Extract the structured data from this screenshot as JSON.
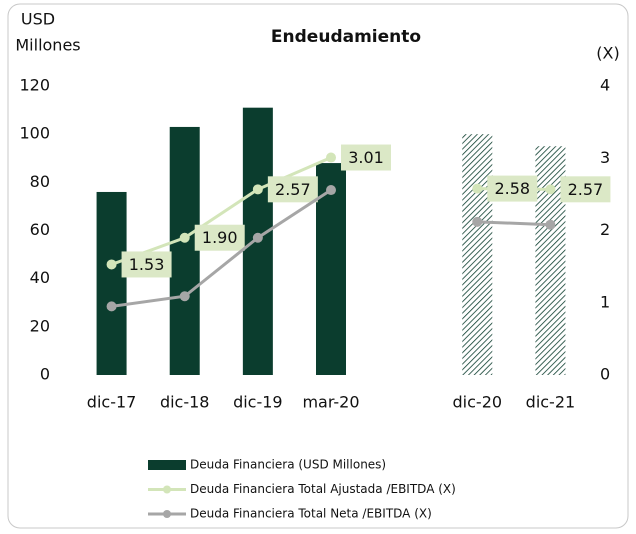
{
  "chart_data": {
    "type": "bar-line",
    "title": "Endeudamiento",
    "ylabel": [
      "USD",
      "Millones"
    ],
    "y2label": "(X)",
    "categories": [
      "dic-17",
      "dic-18",
      "dic-19",
      "mar-20",
      null,
      "dic-20",
      "dic-21"
    ],
    "ylim": [
      0,
      120
    ],
    "yticks": [
      0,
      20,
      40,
      60,
      80,
      100,
      120
    ],
    "y2lim": [
      0,
      4
    ],
    "y2ticks": [
      0,
      1,
      2,
      3,
      4
    ],
    "series": [
      {
        "name": "Deuda Financiera (USD Millones)",
        "type": "bar",
        "color": "#0b3d2e",
        "hatched": [
          false,
          false,
          false,
          false,
          false,
          true,
          true
        ],
        "values": [
          76,
          103,
          111,
          88,
          null,
          100,
          95
        ]
      },
      {
        "name": "Deuda Financiera Total Ajustada /EBITDA (X)",
        "type": "line",
        "axis": "y2",
        "color": "#d3e5b9",
        "values": [
          1.53,
          1.9,
          2.57,
          3.01,
          null,
          2.58,
          2.57
        ],
        "value_labels": [
          "1.53",
          "1.90",
          "2.57",
          "3.01",
          null,
          "2.58",
          "2.57"
        ]
      },
      {
        "name": "Deuda Financiera Total Neta /EBITDA (X)",
        "type": "line",
        "axis": "y2",
        "color": "#a6a6a6",
        "values": [
          0.95,
          1.09,
          1.9,
          2.56,
          null,
          2.12,
          2.08
        ]
      }
    ]
  }
}
